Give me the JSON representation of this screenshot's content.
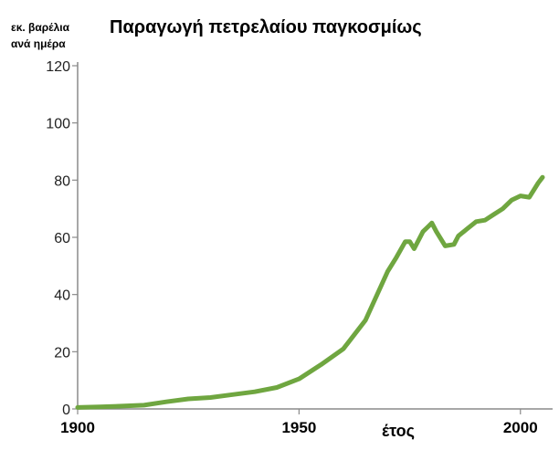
{
  "chart_data": {
    "type": "line",
    "title": "Παραγωγή πετρελαίου παγκοσμίως",
    "ylabel": [
      "εκ. βαρέλια",
      "ανά ημέρα"
    ],
    "xlabel": "έτος",
    "xlim": [
      1900,
      2005
    ],
    "ylim": [
      0,
      120
    ],
    "yticks": [
      0,
      20,
      40,
      60,
      80,
      100,
      120
    ],
    "xticks": [
      1900,
      1950,
      2000
    ],
    "grid": false,
    "line_color": "#6fa640",
    "axis_color": "#8a8a8a",
    "series": [
      {
        "x": [
          1900,
          1905,
          1910,
          1915,
          1920,
          1925,
          1930,
          1935,
          1940,
          1945,
          1950,
          1955,
          1960,
          1965,
          1970,
          1972,
          1974,
          1975,
          1976,
          1978,
          1979,
          1980,
          1981,
          1983,
          1985,
          1986,
          1988,
          1990,
          1992,
          1994,
          1996,
          1998,
          2000,
          2002,
          2004,
          2005
        ],
        "y": [
          0.5,
          0.7,
          1.0,
          1.3,
          2.5,
          3.5,
          4.0,
          5.0,
          6.0,
          7.5,
          10.5,
          15.5,
          21.0,
          31.0,
          48.0,
          53.0,
          58.5,
          58.5,
          56.0,
          62.0,
          63.5,
          65.0,
          62.0,
          57.0,
          57.5,
          60.5,
          63.0,
          65.5,
          66.0,
          68.0,
          70.0,
          73.0,
          74.5,
          74.0,
          79.0,
          81.0
        ]
      }
    ]
  }
}
